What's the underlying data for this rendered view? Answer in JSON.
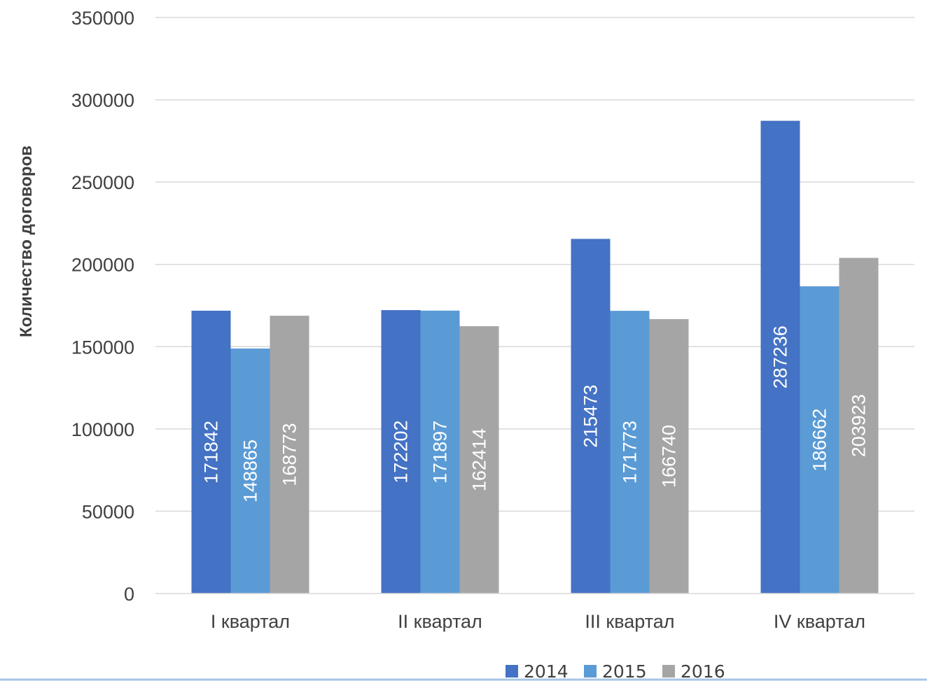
{
  "chart_data": {
    "type": "bar",
    "title": "",
    "xlabel": "",
    "ylabel": "Количество договоров",
    "categories": [
      "I квартал",
      "II квартал",
      "III квартал",
      "IV квартал"
    ],
    "series": [
      {
        "name": "2014",
        "color": "#4472C4",
        "values": [
          171842,
          172202,
          215473,
          287236
        ]
      },
      {
        "name": "2015",
        "color": "#5B9BD5",
        "values": [
          148865,
          171897,
          171773,
          186662
        ]
      },
      {
        "name": "2016",
        "color": "#A5A5A5",
        "values": [
          168773,
          162414,
          166740,
          203923
        ]
      }
    ],
    "ylim": [
      0,
      350000
    ],
    "yticks": [
      0,
      50000,
      100000,
      150000,
      200000,
      250000,
      300000,
      350000
    ],
    "grid": true,
    "gridline_color": "#D9D9D9",
    "legend_position": "bottom",
    "data_labels": "inside-vertical"
  }
}
